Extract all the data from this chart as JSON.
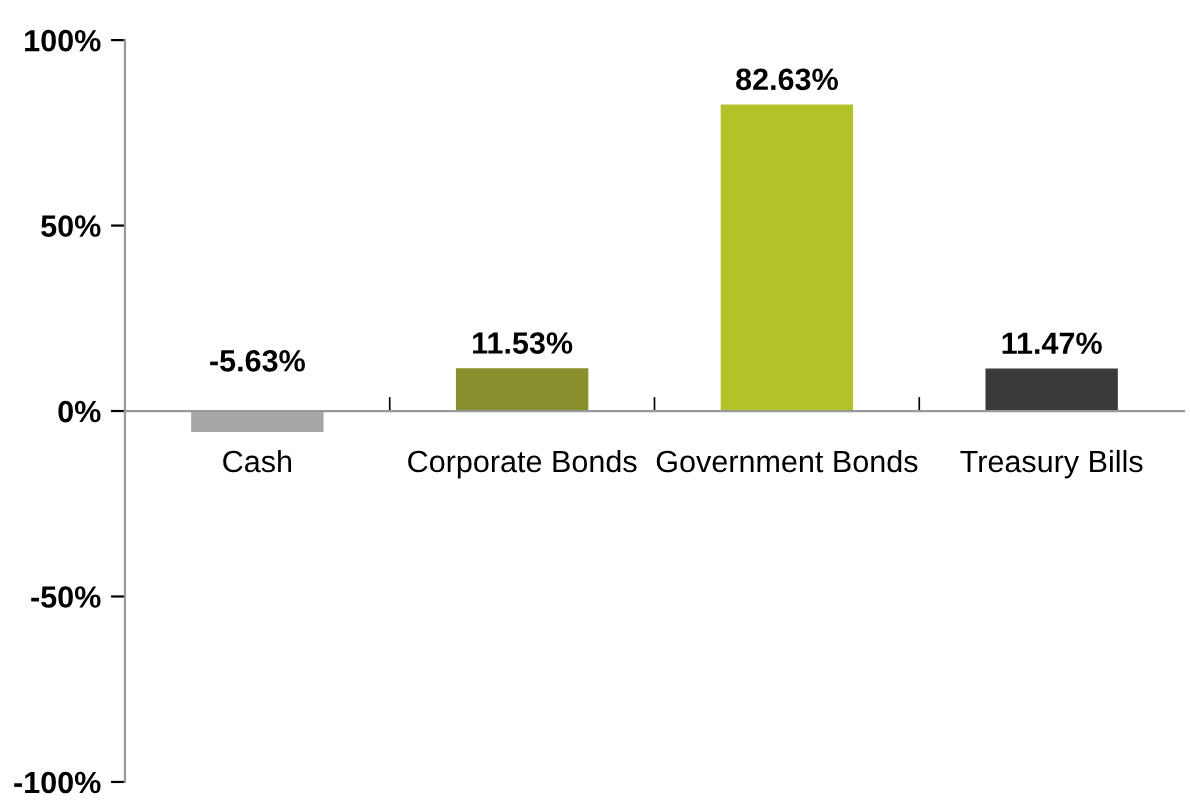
{
  "chart_data": {
    "type": "bar",
    "categories": [
      "Cash",
      "Corporate Bonds",
      "Government Bonds",
      "Treasury Bills"
    ],
    "values": [
      -5.63,
      11.53,
      82.63,
      11.47
    ],
    "colors": [
      "#a6a6a6",
      "#8a8f2e",
      "#b2c32a",
      "#3a3a3a"
    ],
    "value_labels": [
      "-5.63%",
      "11.53%",
      "82.63%",
      "11.47%"
    ],
    "ylim": [
      -100,
      100
    ],
    "yticks": [
      {
        "value": -100,
        "label": "-100%"
      },
      {
        "value": -50,
        "label": "-50%"
      },
      {
        "value": 0,
        "label": "0%"
      },
      {
        "value": 50,
        "label": "50%"
      },
      {
        "value": 100,
        "label": "100%"
      }
    ],
    "grid": false,
    "legend": false
  }
}
